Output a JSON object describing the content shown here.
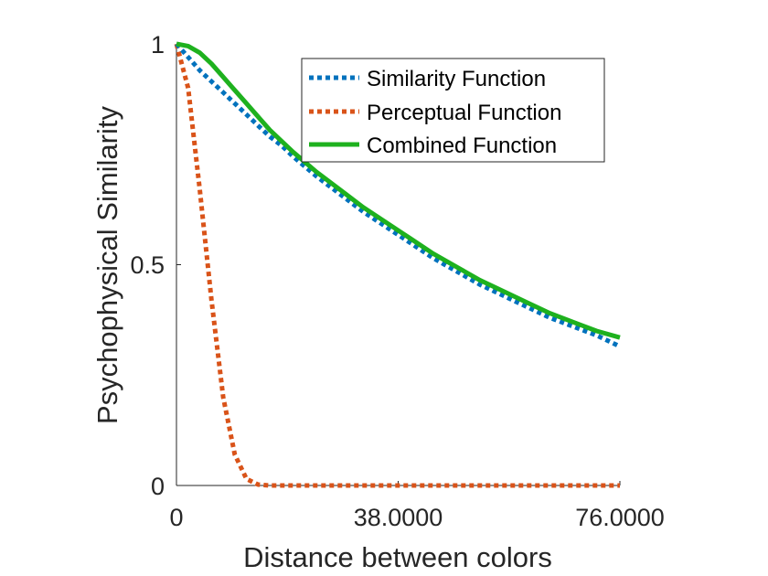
{
  "chart_data": {
    "type": "line",
    "xlabel": "Distance between colors",
    "ylabel": "Psychophysical Similarity",
    "xlim": [
      0,
      76
    ],
    "ylim": [
      0,
      1
    ],
    "x_ticks": [
      0,
      38,
      76
    ],
    "x_tick_labels": [
      "0",
      "38.0000",
      "76.0000"
    ],
    "y_ticks": [
      0,
      0.5,
      1
    ],
    "y_tick_labels": [
      "0",
      "0.5",
      "1"
    ],
    "grid": false,
    "legend_position": "top-right",
    "x": [
      0,
      2,
      4,
      6,
      8,
      10,
      12,
      14,
      16,
      18,
      20,
      24,
      28,
      32,
      36,
      40,
      44,
      48,
      52,
      56,
      60,
      64,
      68,
      72,
      76
    ],
    "series": [
      {
        "name": "Similarity Function",
        "color": "#0072BD",
        "style": "dotted",
        "values": [
          1.0,
          0.97,
          0.94,
          0.915,
          0.89,
          0.865,
          0.84,
          0.815,
          0.79,
          0.77,
          0.745,
          0.7,
          0.66,
          0.62,
          0.585,
          0.55,
          0.515,
          0.485,
          0.455,
          0.43,
          0.405,
          0.38,
          0.36,
          0.34,
          0.315
        ]
      },
      {
        "name": "Perceptual Function",
        "color": "#D95319",
        "style": "dotted",
        "values": [
          1.0,
          0.9,
          0.67,
          0.42,
          0.2,
          0.07,
          0.015,
          0.002,
          0,
          0,
          0,
          0,
          0,
          0,
          0,
          0,
          0,
          0,
          0,
          0,
          0,
          0,
          0,
          0,
          0
        ]
      },
      {
        "name": "Combined Function",
        "color": "#1EB11E",
        "style": "solid",
        "values": [
          1.0,
          0.995,
          0.98,
          0.955,
          0.925,
          0.895,
          0.865,
          0.835,
          0.805,
          0.78,
          0.755,
          0.71,
          0.67,
          0.63,
          0.595,
          0.56,
          0.525,
          0.495,
          0.465,
          0.44,
          0.415,
          0.39,
          0.37,
          0.35,
          0.335
        ]
      }
    ]
  }
}
